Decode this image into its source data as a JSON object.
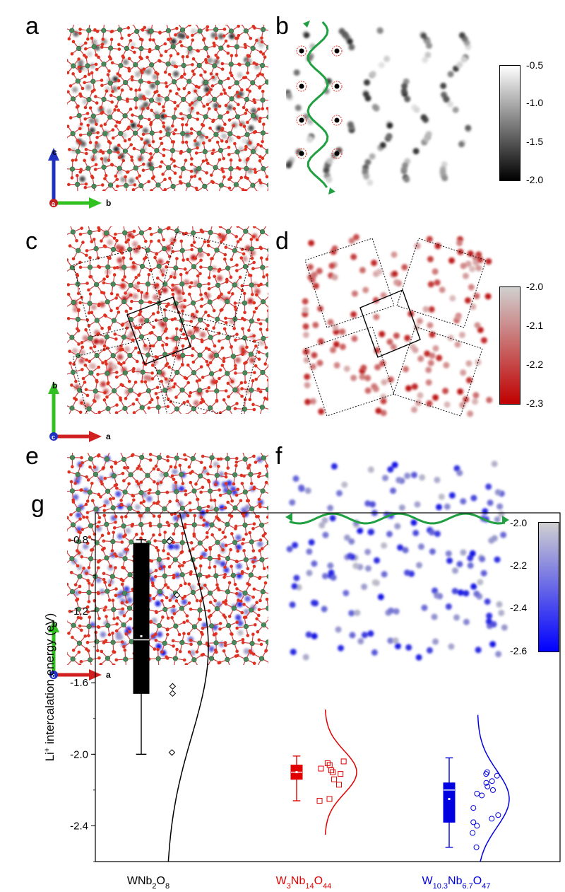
{
  "panels": {
    "a": {
      "letter": "a",
      "axes": {
        "up": "c",
        "right": "b",
        "out": "a"
      }
    },
    "b": {
      "letter": "b",
      "colorbar": {
        "ticks": [
          "-0.5",
          "-1.0",
          "-1.5",
          "-2.0"
        ],
        "gradient": [
          "#ffffff",
          "#000000"
        ]
      }
    },
    "c": {
      "letter": "c",
      "axes": {
        "up": "b",
        "right": "a",
        "out": "c"
      }
    },
    "d": {
      "letter": "d",
      "colorbar": {
        "ticks": [
          "-2.0",
          "-2.1",
          "-2.2",
          "-2.3"
        ],
        "gradient": [
          "#d0d0d0",
          "#c00000"
        ]
      }
    },
    "e": {
      "letter": "e",
      "axes": {
        "up": "b",
        "right": "a",
        "out": "c"
      }
    },
    "f": {
      "letter": "f",
      "colorbar": {
        "ticks": [
          "-2.0",
          "-2.2",
          "-2.4",
          "-2.6"
        ],
        "gradient": [
          "#d0d0d0",
          "#0000ff"
        ]
      }
    },
    "g": {
      "letter": "g"
    }
  },
  "colors": {
    "oxygen": "#e03020",
    "metal": "#4a8a5a",
    "bond": "#d04040",
    "black_series": "#000000",
    "red_series": "#e00000",
    "blue_series": "#0000e0",
    "path": "#20a040"
  },
  "chart_data": {
    "type": "box",
    "ylabel": "Li+ intercalation energy (eV)",
    "ylabel_parts": {
      "pre": "Li",
      "sup": "+",
      "post": " intercalation energy (eV)"
    },
    "ylim": [
      -2.6,
      -0.65
    ],
    "yticks": [
      -0.8,
      -1.2,
      -1.6,
      -2.0,
      -2.4
    ],
    "ytick_labels": [
      "-0.8",
      "-1.2",
      "-1.6",
      "-2.0",
      "-2.4"
    ],
    "categories": [
      "WNb2O8",
      "W3Nb14O44",
      "W10.3Nb6.7O47"
    ],
    "category_labels": [
      {
        "parts": [
          [
            "W",
            ""
          ],
          [
            "Nb",
            ""
          ],
          [
            "2",
            "sub"
          ],
          [
            "O",
            ""
          ],
          [
            "8",
            "sub"
          ]
        ]
      },
      {
        "parts": [
          [
            "W",
            ""
          ],
          [
            "3",
            "sub"
          ],
          [
            "Nb",
            ""
          ],
          [
            "14",
            "sub"
          ],
          [
            "O",
            ""
          ],
          [
            "44",
            "sub"
          ]
        ]
      },
      {
        "parts": [
          [
            "W",
            ""
          ],
          [
            "10.3",
            "sub"
          ],
          [
            "Nb",
            ""
          ],
          [
            "6.7",
            "sub"
          ],
          [
            "O",
            ""
          ],
          [
            "47",
            "sub"
          ]
        ]
      }
    ],
    "series": [
      {
        "name": "WNb2O8",
        "color": "#000000",
        "marker": "diamond",
        "box": {
          "min": -2.0,
          "q1": -1.66,
          "median": -1.36,
          "mean": -1.34,
          "q3": -0.82,
          "max": -0.8
        },
        "points": [
          -0.8,
          -0.81,
          -1.11,
          -1.66,
          -1.99,
          -1.62
        ],
        "normal": {
          "mean": -1.4,
          "sd": 0.5
        }
      },
      {
        "name": "W3Nb14O44",
        "color": "#e00000",
        "marker": "square",
        "box": {
          "min": -2.26,
          "q1": -2.14,
          "median": -2.1,
          "mean": -2.1,
          "q3": -2.06,
          "max": -2.01
        },
        "points": [
          -2.04,
          -2.05,
          -2.06,
          -2.08,
          -2.09,
          -2.1,
          -2.11,
          -2.14,
          -2.17,
          -2.25,
          -2.26
        ],
        "normal": {
          "mean": -2.1,
          "sd": 0.12
        }
      },
      {
        "name": "W10.3Nb6.7O47",
        "color": "#0000e0",
        "marker": "circle",
        "box": {
          "min": -2.52,
          "q1": -2.38,
          "median": -2.2,
          "mean": -2.25,
          "q3": -2.16,
          "max": -2.02
        },
        "points": [
          -2.1,
          -2.11,
          -2.12,
          -2.15,
          -2.16,
          -2.18,
          -2.2,
          -2.22,
          -2.23,
          -2.3,
          -2.34,
          -2.36,
          -2.38,
          -2.4,
          -2.44,
          -2.52
        ],
        "normal": {
          "mean": -2.25,
          "sd": 0.16
        }
      }
    ]
  }
}
